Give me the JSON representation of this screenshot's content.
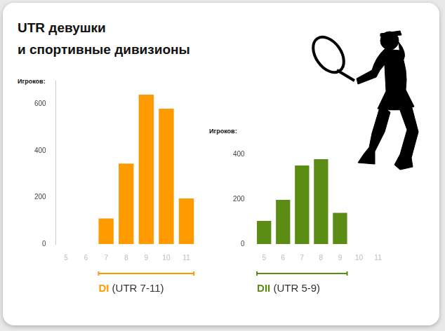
{
  "title": [
    "UTR девушки",
    "и спортивные дивизионы"
  ],
  "chart_data": [
    {
      "type": "bar",
      "y_label": "Игроков:",
      "categories": [
        "5",
        "6",
        "7",
        "8",
        "9",
        "10",
        "11"
      ],
      "values": [
        null,
        null,
        110,
        345,
        640,
        580,
        195
      ],
      "color": "#ff9b00",
      "ylim": [
        0,
        700
      ],
      "yticks": [
        0,
        200,
        400,
        600
      ],
      "grid": false,
      "division": "DI",
      "range_label": "(UTR 7-11)"
    },
    {
      "type": "bar",
      "y_label": "Игроков:",
      "categories": [
        "5",
        "6",
        "7",
        "8",
        "9",
        "10",
        "11"
      ],
      "values": [
        103,
        197,
        350,
        378,
        139,
        null,
        null
      ],
      "color": "#5b8c14",
      "ylim": [
        0,
        400
      ],
      "yticks": [
        0,
        200,
        400
      ],
      "grid": false,
      "division": "DII",
      "range_label": "(UTR 5-9)"
    }
  ]
}
